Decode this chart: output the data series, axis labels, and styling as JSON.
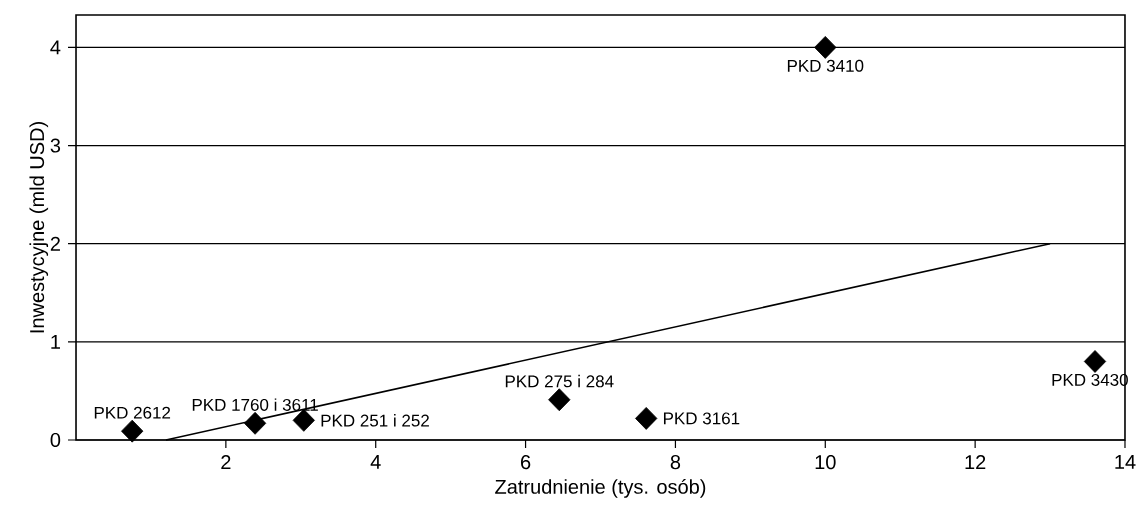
{
  "chart_data": {
    "type": "scatter",
    "xlabel": "Zatrudnienie (tys. osób)",
    "ylabel": "Inwestycyjne (mld USD)",
    "xlim": [
      0,
      14
    ],
    "ylim": [
      0,
      4.33
    ],
    "xticks": [
      2,
      4,
      6,
      8,
      10,
      12,
      14
    ],
    "yticks": [
      0,
      1,
      2,
      3,
      4
    ],
    "grid": "y",
    "series": [
      {
        "marker": "diamond",
        "color": "#000000",
        "x": [
          0.75,
          2.39,
          3.04,
          6.45,
          7.61,
          10.0,
          13.6
        ],
        "values": [
          0.09,
          0.17,
          0.2,
          0.41,
          0.22,
          4.0,
          0.8
        ]
      },
      {
        "type": "line",
        "color": "#000000",
        "x": [
          1.2,
          13.0
        ],
        "values": [
          0,
          2
        ]
      }
    ],
    "annotations": [
      {
        "text": "PKD 2612",
        "x": 0.75,
        "y": 0.09
      },
      {
        "text": "PKD 1760 i 3611",
        "x": 2.39,
        "y": 0.17
      },
      {
        "text": "PKD 251 i 252",
        "x": 3.04,
        "y": 0.2
      },
      {
        "text": "PKD 275 i 284",
        "x": 6.45,
        "y": 0.41
      },
      {
        "text": "PKD 3161",
        "x": 7.61,
        "y": 0.22
      },
      {
        "text": "PKD 3410",
        "x": 10.0,
        "y": 4.0
      },
      {
        "text": "PKD 3430",
        "x": 13.6,
        "y": 0.8
      }
    ]
  }
}
